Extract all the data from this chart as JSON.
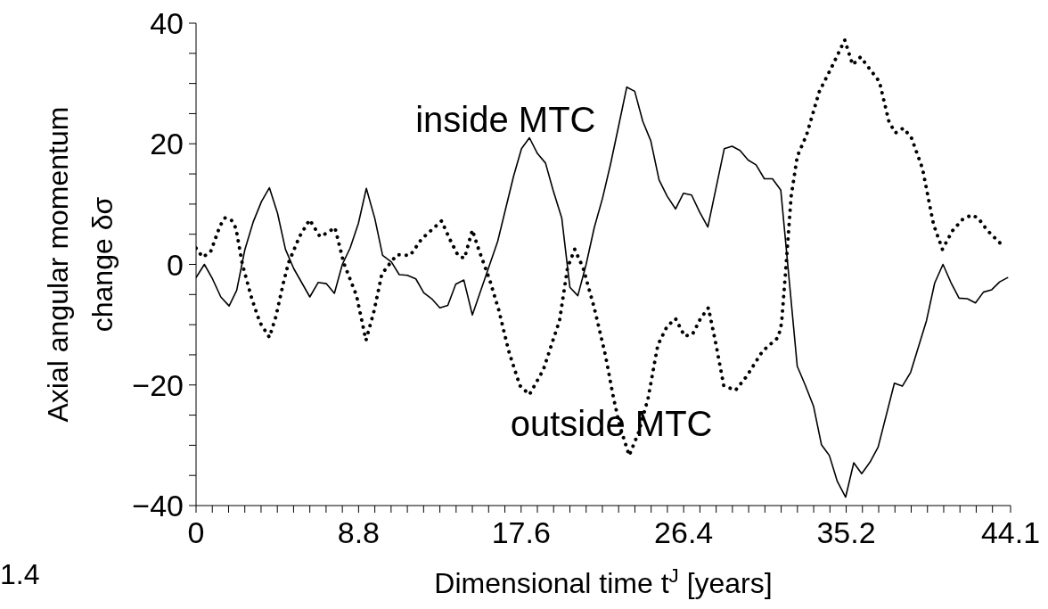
{
  "chart_data": {
    "type": "line",
    "xlabel": "Dimensional time  t$^{J}$ [years]",
    "ylabel": "Axial angular momentum\nchange  δσ",
    "xlim": [
      0,
      44.1
    ],
    "ylim": [
      -40,
      40
    ],
    "xticks": [
      0,
      {
        "value": 0.88,
        "label": null
      },
      {
        "value": 1.76,
        "label": null
      },
      {
        "value": 2.64,
        "label": null
      },
      {
        "value": 3.52,
        "label": null
      },
      {
        "value": 4.4,
        "label": null
      },
      {
        "value": 5.28,
        "label": null
      },
      {
        "value": 6.16,
        "label": null
      },
      {
        "value": 7.04,
        "label": null
      },
      {
        "value": 7.92,
        "label": null
      },
      8.8,
      {
        "value": 9.68,
        "label": null
      },
      {
        "value": 10.56,
        "label": null
      },
      {
        "value": 11.44,
        "label": null
      },
      {
        "value": 12.32,
        "label": null
      },
      {
        "value": 13.2,
        "label": null
      },
      {
        "value": 14.08,
        "label": null
      },
      {
        "value": 14.96,
        "label": null
      },
      {
        "value": 15.84,
        "label": null
      },
      {
        "value": 16.72,
        "label": null
      },
      17.6,
      {
        "value": 18.48,
        "label": null
      },
      {
        "value": 19.36,
        "label": null
      },
      {
        "value": 20.24,
        "label": null
      },
      {
        "value": 21.12,
        "label": null
      },
      {
        "value": 22,
        "label": null
      },
      {
        "value": 22.88,
        "label": null
      },
      {
        "value": 23.76,
        "label": null
      },
      {
        "value": 24.64,
        "label": null
      },
      {
        "value": 25.52,
        "label": null
      },
      26.4,
      {
        "value": 27.28,
        "label": null
      },
      {
        "value": 28.16,
        "label": null
      },
      {
        "value": 29.04,
        "label": null
      },
      {
        "value": 29.92,
        "label": null
      },
      {
        "value": 30.8,
        "label": null
      },
      {
        "value": 31.68,
        "label": null
      },
      {
        "value": 32.56,
        "label": null
      },
      {
        "value": 33.44,
        "label": null
      },
      {
        "value": 34.32,
        "label": null
      },
      35.2,
      {
        "value": 36.08,
        "label": null
      },
      {
        "value": 36.96,
        "label": null
      },
      {
        "value": 37.84,
        "label": null
      },
      {
        "value": 38.72,
        "label": null
      },
      {
        "value": 39.6,
        "label": null
      },
      {
        "value": 40.48,
        "label": null
      },
      {
        "value": 41.36,
        "label": null
      },
      {
        "value": 42.24,
        "label": null
      },
      {
        "value": 43.12,
        "label": null
      },
      44.1
    ],
    "yticks": [
      {
        "value": -40,
        "label": "−40"
      },
      {
        "value": -35,
        "label": null
      },
      {
        "value": -30,
        "label": null
      },
      {
        "value": -25,
        "label": null
      },
      {
        "value": -20,
        "label": "−20"
      },
      {
        "value": -15,
        "label": null
      },
      {
        "value": -10,
        "label": null
      },
      {
        "value": -5,
        "label": null
      },
      0,
      {
        "value": 5,
        "label": null
      },
      {
        "value": 10,
        "label": null
      },
      {
        "value": 15,
        "label": null
      },
      20,
      {
        "value": 25,
        "label": null
      },
      {
        "value": 30,
        "label": null
      },
      {
        "value": 35,
        "label": null
      },
      40
    ],
    "marker": "none",
    "series": [
      {
        "name": "inside MTC",
        "color": "#000000",
        "line_style": "solid",
        "x": [
          0,
          0.45,
          0.89,
          1.34,
          1.79,
          2.2,
          2.64,
          3.09,
          3.54,
          3.97,
          4.41,
          4.84,
          5.29,
          6.16,
          6.61,
          7.06,
          7.49,
          7.92,
          8.34,
          8.79,
          9.22,
          9.68,
          10.1,
          10.58,
          11.0,
          11.44,
          11.9,
          12.33,
          12.76,
          13.2,
          13.63,
          14.06,
          14.5,
          14.96,
          16.33,
          16.76,
          17.19,
          17.62,
          18.05,
          18.48,
          18.92,
          19.33,
          19.8,
          20.24,
          20.67,
          21.12,
          21.56,
          22.01,
          22.44,
          22.89,
          23.32,
          23.75,
          24.19,
          24.62,
          25.07,
          25.51,
          25.96,
          26.39,
          26.83,
          27.26,
          27.71,
          28.6,
          29.02,
          29.45,
          29.89,
          30.32,
          30.77,
          31.21,
          31.66,
          32.55,
          32.98,
          33.43,
          33.86,
          34.29,
          34.72,
          35.17,
          35.61,
          36.04,
          36.49,
          36.93,
          37.81,
          38.24,
          38.69,
          39.55,
          39.99,
          40.44,
          40.87,
          41.31,
          41.76,
          42.2,
          42.63,
          43.08,
          43.51,
          43.94
        ],
        "values": [
          -2.2,
          0,
          -2.4,
          -5.4,
          -6.9,
          -4.3,
          2.4,
          7.0,
          10.4,
          12.7,
          8.5,
          2.5,
          -0.7,
          -5.4,
          -3.0,
          -3.2,
          -4.8,
          0,
          2.7,
          6.8,
          12.6,
          7.6,
          1.5,
          0.4,
          -1.7,
          -1.8,
          -2.4,
          -4.7,
          -5.7,
          -7.2,
          -6.8,
          -3.3,
          -2.6,
          -8.4,
          3.8,
          9.2,
          14.6,
          19.2,
          21.0,
          18.4,
          16.8,
          12.3,
          7.7,
          -3.8,
          -5.2,
          0,
          6.1,
          11.0,
          16.6,
          23.1,
          29.4,
          28.7,
          23.7,
          20.5,
          14.0,
          11.3,
          9.2,
          11.8,
          11.5,
          8.7,
          6.2,
          19.2,
          19.6,
          18.9,
          17.3,
          16.5,
          14.2,
          14.2,
          12.3,
          -16.9,
          -20.0,
          -23.5,
          -29.9,
          -31.7,
          -36.0,
          -38.6,
          -32.9,
          -34.7,
          -32.8,
          -30.3,
          -19.7,
          -20.2,
          -17.9,
          -9.3,
          -3.1,
          0,
          -3.0,
          -5.6,
          -5.7,
          -6.4,
          -4.6,
          -4.2,
          -2.9,
          -2.2
        ]
      },
      {
        "name": "outside MTC",
        "color": "#000000",
        "line_style": "dotted",
        "x": [
          0,
          0.36,
          0.79,
          1.3,
          1.56,
          1.9,
          2.16,
          2.51,
          3.02,
          3.45,
          3.97,
          4.31,
          4.74,
          5.0,
          5.6,
          6.15,
          6.71,
          7.14,
          7.52,
          8.0,
          8.69,
          9.2,
          9.63,
          10.06,
          10.58,
          10.89,
          11.6,
          12.21,
          13.29,
          13.75,
          14.18,
          14.53,
          14.96,
          15.3,
          15.9,
          16.41,
          16.93,
          17.53,
          18.05,
          18.8,
          19.68,
          20.11,
          20.5,
          20.96,
          21.56,
          22.16,
          22.6,
          22.94,
          23.45,
          23.97,
          24.48,
          25.0,
          25.5,
          25.96,
          26.45,
          26.88,
          27.31,
          27.74,
          28.16,
          28.57,
          29.2,
          29.8,
          30.67,
          31.52,
          31.7,
          31.96,
          32.22,
          32.55,
          33.06,
          33.75,
          34.43,
          35.12,
          35.55,
          35.98,
          36.5,
          37.0,
          37.52,
          37.87,
          38.3,
          38.73,
          39.33,
          39.93,
          40.41,
          40.96,
          41.48,
          41.99,
          42.34,
          42.85,
          43.71
        ],
        "values": [
          2.7,
          1.2,
          2.1,
          6.4,
          7.7,
          7.4,
          6.0,
          0,
          -5.7,
          -9.6,
          -12.1,
          -8.8,
          -2.9,
          0.2,
          4.6,
          7.4,
          4.6,
          5.3,
          6.1,
          0.2,
          -5.2,
          -12.6,
          -7.8,
          -1.6,
          0.5,
          1.6,
          1.5,
          4.2,
          7.2,
          4.1,
          1.5,
          1.0,
          5.7,
          2.5,
          -2.6,
          -7.8,
          -14.4,
          -20.1,
          -21.6,
          -17.5,
          -9.3,
          -0.6,
          2.5,
          -0.6,
          -7.2,
          -15.0,
          -22.1,
          -26.8,
          -31.7,
          -27.8,
          -22.1,
          -13.4,
          -10.3,
          -9.0,
          -11.9,
          -11.6,
          -9.0,
          -7.2,
          -13.4,
          -20.1,
          -20.9,
          -18.6,
          -14.4,
          -12.1,
          -9.8,
          0.5,
          11.3,
          17.9,
          21.5,
          28.7,
          32.8,
          37.2,
          33.1,
          34.4,
          32.3,
          30.3,
          23.6,
          21.8,
          22.6,
          21.0,
          15.9,
          6.6,
          2.5,
          5.6,
          7.4,
          8.2,
          7.7,
          5.6,
          3.0
        ]
      }
    ],
    "annotations": [
      "1.4"
    ]
  }
}
